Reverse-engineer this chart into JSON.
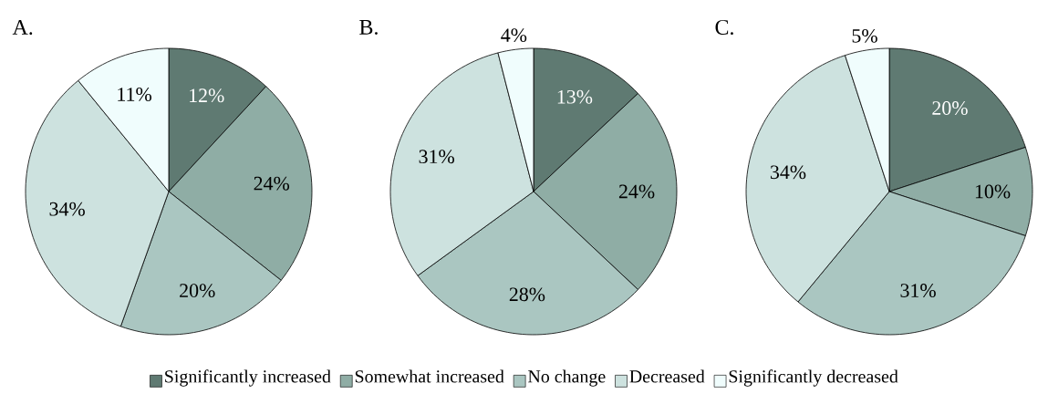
{
  "chart_data": [
    {
      "type": "pie",
      "title": "A.",
      "categories": [
        "Significantly increased",
        "Somewhat increased",
        "No change",
        "Decreased",
        "Significantly decreased"
      ],
      "values": [
        12,
        24,
        20,
        34,
        11
      ],
      "value_labels": [
        "12%",
        "24%",
        "20%",
        "34%",
        "11%"
      ],
      "colors": [
        "#5f7a72",
        "#8fada5",
        "#aac6c1",
        "#cde2df",
        "#f0fdfd"
      ],
      "legend": "bottom"
    },
    {
      "type": "pie",
      "title": "B.",
      "categories": [
        null,
        null,
        null,
        null,
        null
      ],
      "values": [
        13,
        24,
        28,
        31,
        4
      ],
      "value_labels": [
        "13%",
        "24%",
        "28%",
        "31%",
        "4%"
      ],
      "colors": [
        "#5f7a72",
        "#8fada5",
        "#aac6c1",
        "#cde2df",
        "#f0fdfd"
      ]
    },
    {
      "type": "pie",
      "title": "C.",
      "categories": [
        null,
        null,
        null,
        null,
        null
      ],
      "values": [
        20,
        10,
        31,
        34,
        5
      ],
      "value_labels": [
        "20%",
        "10%",
        "31%",
        "34%",
        "5%"
      ],
      "colors": [
        "#5f7a72",
        "#8fada5",
        "#aac6c1",
        "#cde2df",
        "#f0fdfd"
      ]
    }
  ]
}
